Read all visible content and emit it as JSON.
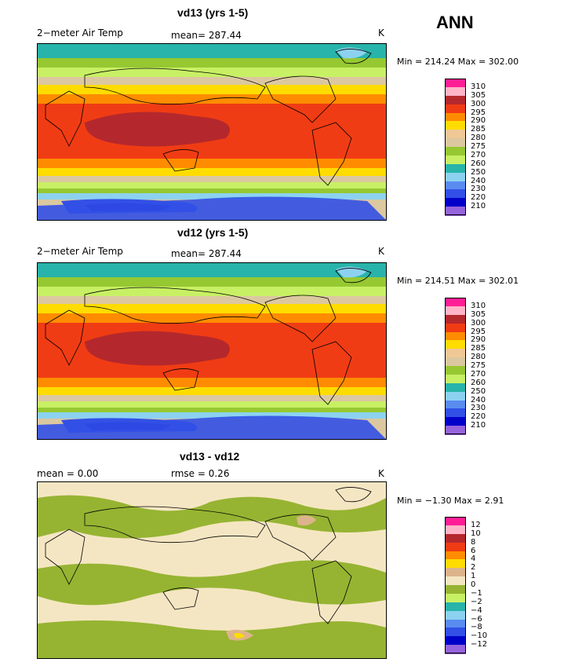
{
  "season": "ANN",
  "panels": [
    {
      "title": "vd13 (yrs 1-5)",
      "left_label": "2−meter Air Temp",
      "center_label": "mean=  287.44",
      "right_label": "K",
      "minmax": "Min = 214.24 Max = 302.00",
      "levels": [
        "310",
        "305",
        "300",
        "295",
        "290",
        "285",
        "280",
        "275",
        "270",
        "260",
        "250",
        "240",
        "230",
        "220",
        "210"
      ],
      "colors": [
        "#ff1e96",
        "#ffb4c8",
        "#b4282d",
        "#f03c14",
        "#ff8c00",
        "#ffdc00",
        "#f0c896",
        "#dcc8a0",
        "#96c832",
        "#c8f064",
        "#28b4aa",
        "#8cd2f0",
        "#5a8cf0",
        "#3250e6",
        "#0000c8",
        "#9664dc"
      ]
    },
    {
      "title": "vd12 (yrs 1-5)",
      "left_label": "2−meter Air Temp",
      "center_label": "mean=  287.44",
      "right_label": "K",
      "minmax": "Min = 214.51 Max = 302.01",
      "levels": [
        "310",
        "305",
        "300",
        "295",
        "290",
        "285",
        "280",
        "275",
        "270",
        "260",
        "250",
        "240",
        "230",
        "220",
        "210"
      ],
      "colors": [
        "#ff1e96",
        "#ffb4c8",
        "#b4282d",
        "#f03c14",
        "#ff8c00",
        "#ffdc00",
        "#f0c896",
        "#dcc8a0",
        "#96c832",
        "#c8f064",
        "#28b4aa",
        "#8cd2f0",
        "#5a8cf0",
        "#3250e6",
        "#0000c8",
        "#9664dc"
      ]
    },
    {
      "title": "vd13 - vd12",
      "left_label": "mean =     0.00",
      "center_label": "rmse =     0.26",
      "right_label": "K",
      "minmax": "Min =   −1.30 Max =    2.91",
      "levels": [
        "12",
        "10",
        "8",
        "6",
        "4",
        "2",
        "1",
        "0",
        "−1",
        "−2",
        "−4",
        "−6",
        "−8",
        "−10",
        "−12"
      ],
      "colors": [
        "#ff1e96",
        "#ffb4c8",
        "#b4282d",
        "#f03c14",
        "#ff8c00",
        "#ffdc00",
        "#dcb48c",
        "#f5e6c3",
        "#96b432",
        "#c8f064",
        "#28b4aa",
        "#8cd2f0",
        "#5a8cf0",
        "#3250e6",
        "#0000c8",
        "#9664dc"
      ]
    }
  ]
}
